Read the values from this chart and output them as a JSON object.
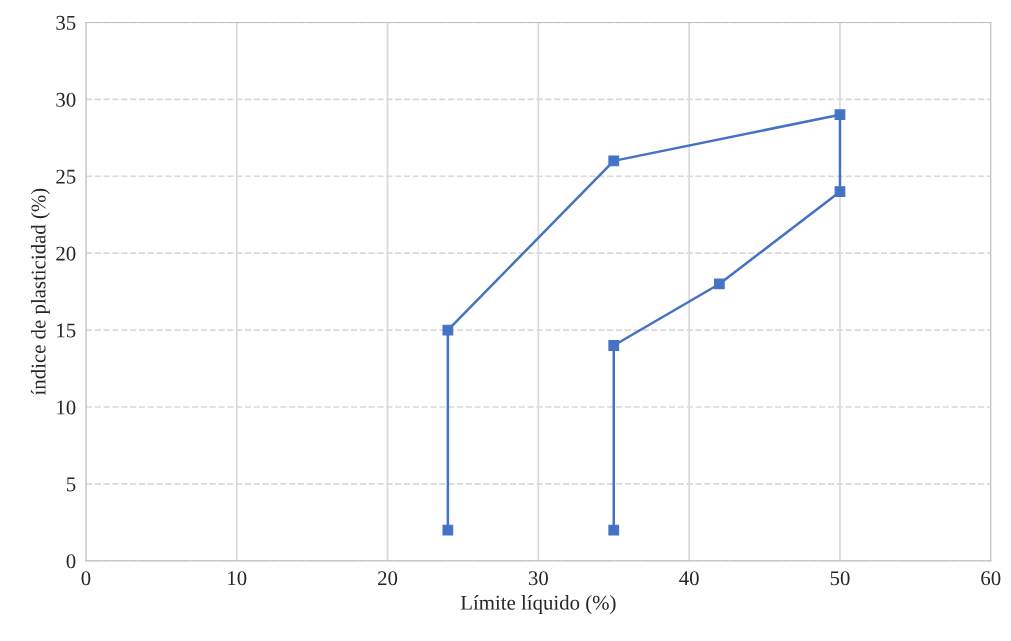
{
  "chart_data": {
    "type": "line",
    "xlabel": "Límite líquido (%)",
    "ylabel": "índice de plasticidad (%)",
    "series": [
      {
        "color": "#4472c4",
        "x": [
          24,
          24,
          35,
          50,
          50,
          42,
          35,
          35
        ],
        "values": [
          2,
          15,
          26,
          29,
          24,
          18,
          14,
          2
        ]
      }
    ],
    "xlim": [
      0,
      60
    ],
    "xticks": [
      0,
      10,
      20,
      30,
      40,
      50,
      60
    ],
    "ylim": [
      0,
      35
    ],
    "yticks": [
      0,
      5,
      10,
      15,
      20,
      25,
      30,
      35
    ],
    "grid": true,
    "marker": "square",
    "line_style": "solid"
  }
}
